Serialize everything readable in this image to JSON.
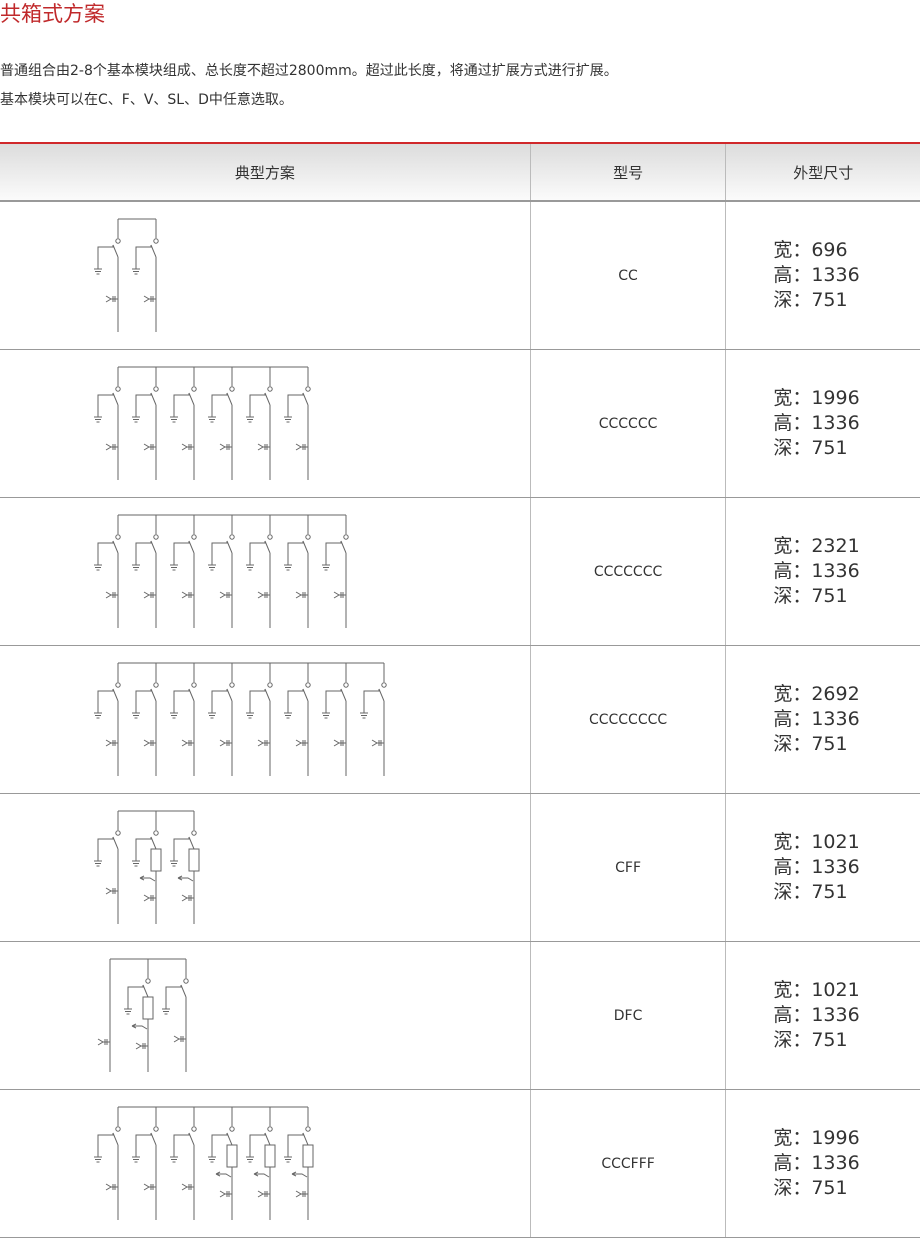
{
  "title": "共箱式方案",
  "intro": [
    "普通组合由2-8个基本模块组成、总长度不超过2800mm。超过此长度，将通过扩展方式进行扩展。",
    "基本模块可以在C、F、V、SL、D中任意选取。"
  ],
  "colors": {
    "accent": "#d0282b",
    "line": "#555555"
  },
  "table": {
    "headers": [
      "典型方案",
      "型号",
      "外型尺寸"
    ],
    "dim_labels": {
      "width": "宽：",
      "height": "高：",
      "depth": "深："
    },
    "rows": [
      {
        "model": "CC",
        "width": "696",
        "height": "1336",
        "depth": "751"
      },
      {
        "model": "CCCCCC",
        "width": "1996",
        "height": "1336",
        "depth": "751"
      },
      {
        "model": "CCCCCCC",
        "width": "2321",
        "height": "1336",
        "depth": "751"
      },
      {
        "model": "CCCCCCCC",
        "width": "2692",
        "height": "1336",
        "depth": "751"
      },
      {
        "model": "CFF",
        "width": "1021",
        "height": "1336",
        "depth": "751"
      },
      {
        "model": "DFC",
        "width": "1021",
        "height": "1336",
        "depth": "751"
      },
      {
        "model": "CCCFFF",
        "width": "1996",
        "height": "1336",
        "depth": "751"
      }
    ]
  }
}
